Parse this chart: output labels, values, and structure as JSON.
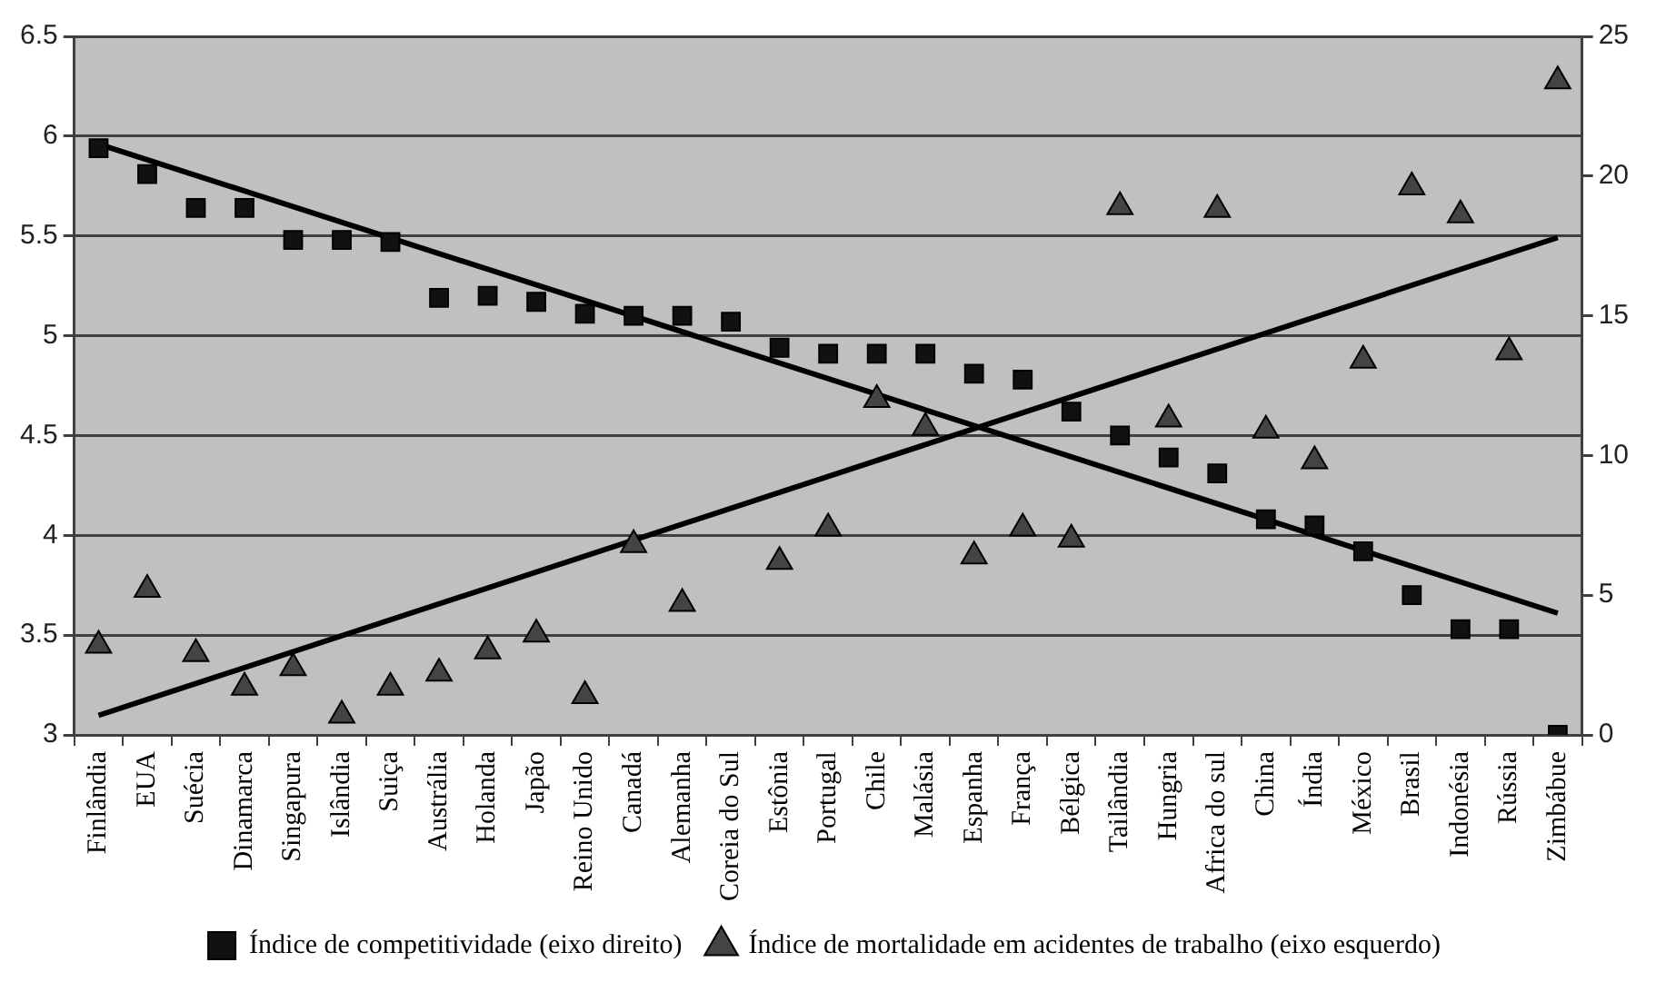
{
  "chart_data": {
    "type": "scatter",
    "categories": [
      "Finlândia",
      "EUA",
      "Suécia",
      "Dinamarca",
      "Singapura",
      "Islândia",
      "Suiça",
      "Austrália",
      "Holanda",
      "Japão",
      "Reino Unido",
      "Canadá",
      "Alemanha",
      "Coreia do Sul",
      "Estônia",
      "Portugal",
      "Chile",
      "Malásia",
      "Espanha",
      "França",
      "Bélgica",
      "Tailândia",
      "Hungria",
      "Africa do sul",
      "China",
      "Índia",
      "México",
      "Brasil",
      "Indonésia",
      "Rússia",
      "Zimbábue"
    ],
    "series": [
      {
        "name": "Índice de competitividade (eixo direito)",
        "marker": "square",
        "color": "#111111",
        "values": [
          5.94,
          5.81,
          5.64,
          5.64,
          5.48,
          5.48,
          5.47,
          5.19,
          5.2,
          5.17,
          5.11,
          5.1,
          5.1,
          5.07,
          4.94,
          4.91,
          4.91,
          4.91,
          4.81,
          4.78,
          4.62,
          4.5,
          4.39,
          4.31,
          4.08,
          4.05,
          3.92,
          3.7,
          3.53,
          3.53,
          3.0
        ]
      },
      {
        "name": "Índice de mortalidade em acidentes de trabalho (eixo esquerdo)",
        "marker": "triangle",
        "axis": "y2",
        "color": "#444444",
        "values": [
          3.2,
          5.2,
          2.9,
          1.7,
          2.4,
          0.7,
          1.7,
          2.2,
          3.0,
          3.6,
          1.4,
          6.8,
          4.7,
          null,
          6.2,
          7.4,
          12.0,
          11.0,
          6.4,
          7.4,
          7.0,
          18.9,
          11.3,
          18.8,
          10.9,
          9.8,
          13.4,
          19.6,
          18.6,
          13.7,
          23.4
        ]
      },
      {
        "type": "line",
        "marker": "none",
        "color": "#000000",
        "x": [
          "Finlândia",
          "Zimbábue"
        ],
        "values": [
          5.96,
          3.61
        ]
      },
      {
        "type": "line",
        "marker": "none",
        "axis": "y2",
        "color": "#000000",
        "x": [
          "Finlândia",
          "Zimbábue"
        ],
        "values": [
          0.7,
          17.8
        ]
      }
    ],
    "ylim": [
      3,
      6.5
    ],
    "yticks": [
      3,
      3.5,
      4,
      4.5,
      5,
      5.5,
      6,
      6.5
    ],
    "y2lim": [
      0,
      25
    ],
    "y2ticks": [
      0,
      5,
      10,
      15,
      20,
      25
    ],
    "grid": "y",
    "legend": "bottom"
  }
}
